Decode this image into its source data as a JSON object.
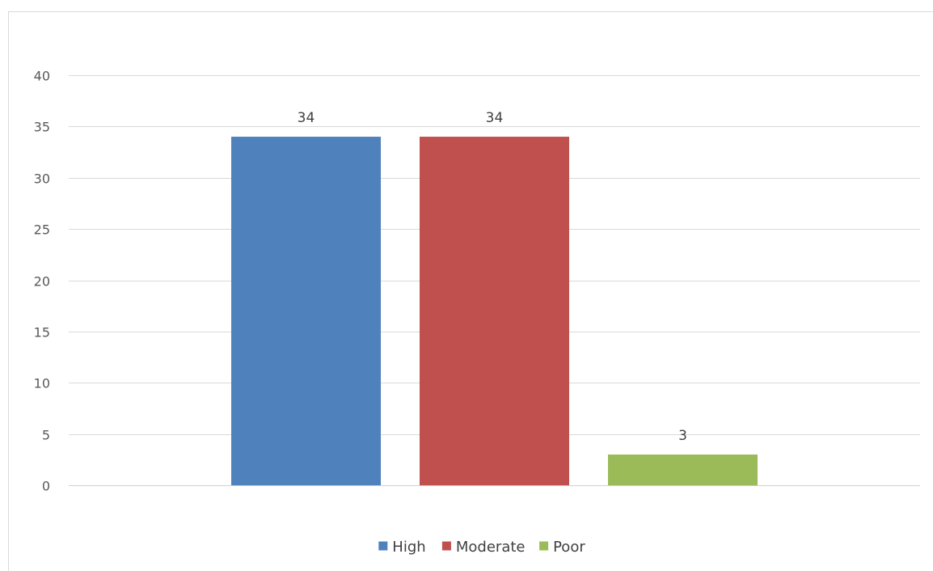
{
  "chart_data": {
    "type": "bar",
    "title": "",
    "xlabel": "",
    "ylabel": "",
    "ylim": [
      0,
      40
    ],
    "y_ticks": [
      0,
      5,
      10,
      15,
      20,
      25,
      30,
      35,
      40
    ],
    "grid": true,
    "legend_position": "bottom",
    "series": [
      {
        "name": "High",
        "value": 34,
        "color": "#4F81BD"
      },
      {
        "name": "Moderate",
        "value": 34,
        "color": "#C0504D"
      },
      {
        "name": "Poor",
        "value": 3,
        "color": "#9BBB59"
      }
    ]
  }
}
